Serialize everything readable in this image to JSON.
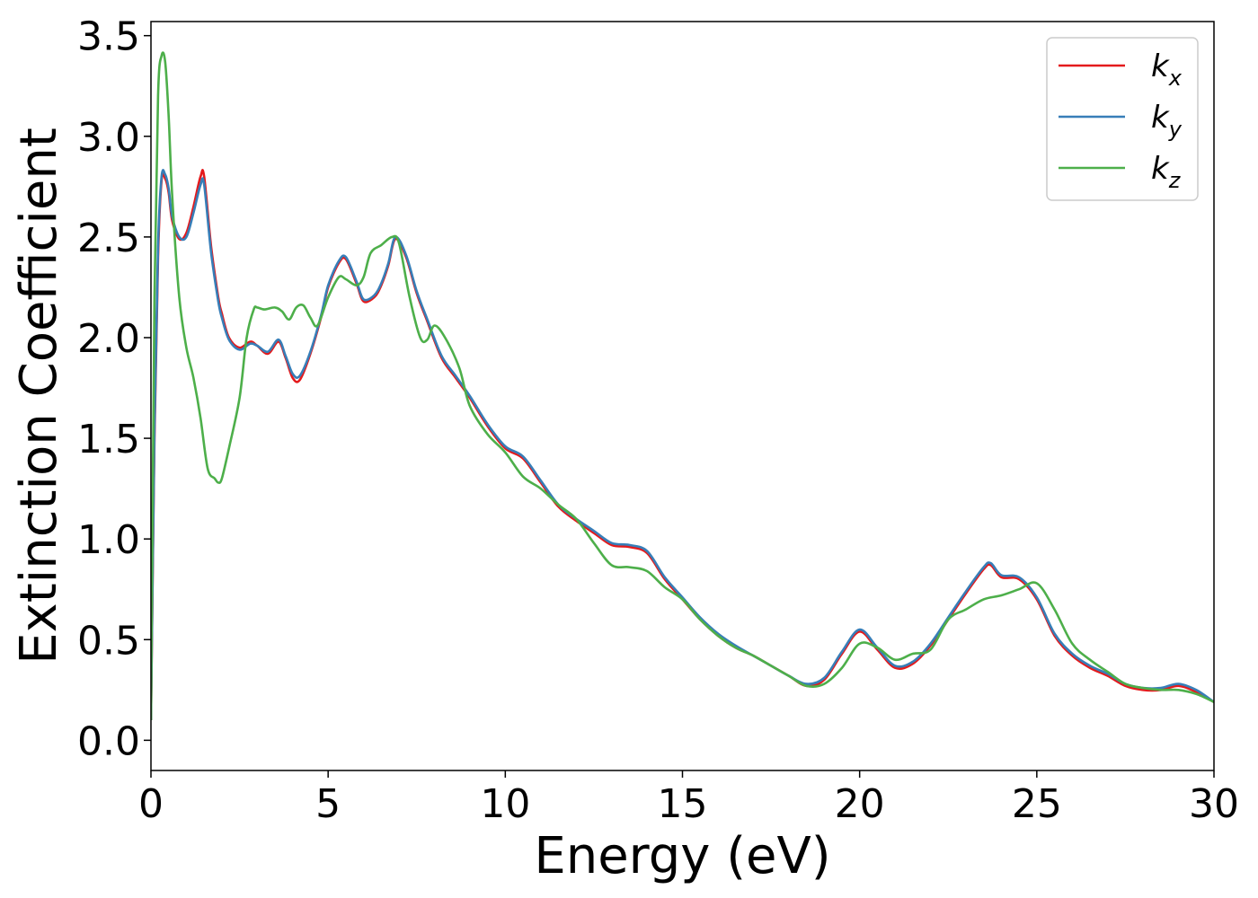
{
  "chart_data": {
    "type": "line",
    "xlabel": "Energy (eV)",
    "ylabel": "Extinction Coefficient",
    "xlim": [
      0,
      30
    ],
    "ylim": [
      -0.15,
      3.57
    ],
    "xticks": [
      0,
      5,
      10,
      15,
      20,
      25,
      30
    ],
    "xtick_labels": [
      "0",
      "5",
      "10",
      "15",
      "20",
      "25",
      "30"
    ],
    "yticks": [
      0.0,
      0.5,
      1.0,
      1.5,
      2.0,
      2.5,
      3.0,
      3.5
    ],
    "ytick_labels": [
      "0.0",
      "0.5",
      "1.0",
      "1.5",
      "2.0",
      "2.5",
      "3.0",
      "3.5"
    ],
    "grid": false,
    "legend_position": "top-right",
    "series": [
      {
        "name": "kx",
        "name_main": "k",
        "name_sub": "x",
        "color": "#e41a1c",
        "x": [
          0,
          0.1,
          0.2,
          0.3,
          0.4,
          0.5,
          0.6,
          0.8,
          1.0,
          1.2,
          1.4,
          1.5,
          1.7,
          1.9,
          2.0,
          2.2,
          2.5,
          2.8,
          3.0,
          3.3,
          3.6,
          3.8,
          4.0,
          4.2,
          4.5,
          4.8,
          5.0,
          5.3,
          5.5,
          5.8,
          6.0,
          6.3,
          6.5,
          6.7,
          6.9,
          7.2,
          7.5,
          7.8,
          8.2,
          8.6,
          9.0,
          9.5,
          10.0,
          10.5,
          11.0,
          11.5,
          12.0,
          12.5,
          13.0,
          13.5,
          14.0,
          14.5,
          15.0,
          15.5,
          16.0,
          16.5,
          17.0,
          17.5,
          18.0,
          18.5,
          19.0,
          19.5,
          20.0,
          20.5,
          21.0,
          21.5,
          22.0,
          22.5,
          23.0,
          23.5,
          23.7,
          24.0,
          24.5,
          25.0,
          25.5,
          26.0,
          26.5,
          27.0,
          27.5,
          28.0,
          28.5,
          29.0,
          29.5,
          30.0
        ],
        "values": [
          0.1,
          1.5,
          2.4,
          2.78,
          2.79,
          2.72,
          2.58,
          2.49,
          2.52,
          2.65,
          2.8,
          2.8,
          2.45,
          2.2,
          2.12,
          2.0,
          1.95,
          1.98,
          1.96,
          1.92,
          1.98,
          1.9,
          1.8,
          1.79,
          1.92,
          2.1,
          2.25,
          2.37,
          2.39,
          2.27,
          2.18,
          2.2,
          2.26,
          2.36,
          2.49,
          2.4,
          2.22,
          2.08,
          1.9,
          1.8,
          1.7,
          1.56,
          1.45,
          1.4,
          1.28,
          1.16,
          1.09,
          1.03,
          0.97,
          0.96,
          0.93,
          0.8,
          0.7,
          0.6,
          0.52,
          0.46,
          0.42,
          0.37,
          0.32,
          0.27,
          0.3,
          0.43,
          0.54,
          0.45,
          0.36,
          0.38,
          0.47,
          0.6,
          0.73,
          0.85,
          0.87,
          0.81,
          0.8,
          0.7,
          0.52,
          0.42,
          0.36,
          0.32,
          0.27,
          0.25,
          0.25,
          0.27,
          0.24,
          0.19
        ]
      },
      {
        "name": "ky",
        "name_main": "k",
        "name_sub": "y",
        "color": "#377eb8",
        "x": [
          0,
          0.1,
          0.2,
          0.3,
          0.4,
          0.5,
          0.6,
          0.8,
          1.0,
          1.2,
          1.4,
          1.5,
          1.7,
          1.9,
          2.0,
          2.2,
          2.5,
          2.8,
          3.0,
          3.3,
          3.6,
          3.8,
          4.0,
          4.2,
          4.5,
          4.8,
          5.0,
          5.3,
          5.5,
          5.8,
          6.0,
          6.3,
          6.5,
          6.7,
          6.9,
          7.2,
          7.5,
          7.8,
          8.2,
          8.6,
          9.0,
          9.5,
          10.0,
          10.5,
          11.0,
          11.5,
          12.0,
          12.5,
          13.0,
          13.5,
          14.0,
          14.5,
          15.0,
          15.5,
          16.0,
          16.5,
          17.0,
          17.5,
          18.0,
          18.5,
          19.0,
          19.5,
          20.0,
          20.5,
          21.0,
          21.5,
          22.0,
          22.5,
          23.0,
          23.5,
          23.7,
          24.0,
          24.5,
          25.0,
          25.5,
          26.0,
          26.5,
          27.0,
          27.5,
          28.0,
          28.5,
          29.0,
          29.5,
          30.0
        ],
        "values": [
          0.1,
          1.55,
          2.45,
          2.8,
          2.81,
          2.74,
          2.6,
          2.5,
          2.5,
          2.62,
          2.76,
          2.76,
          2.42,
          2.18,
          2.1,
          1.99,
          1.94,
          1.97,
          1.96,
          1.93,
          1.99,
          1.91,
          1.82,
          1.81,
          1.93,
          2.11,
          2.26,
          2.38,
          2.4,
          2.28,
          2.19,
          2.21,
          2.27,
          2.37,
          2.5,
          2.41,
          2.23,
          2.09,
          1.91,
          1.81,
          1.71,
          1.57,
          1.46,
          1.41,
          1.29,
          1.17,
          1.1,
          1.04,
          0.98,
          0.97,
          0.94,
          0.81,
          0.71,
          0.61,
          0.53,
          0.47,
          0.42,
          0.37,
          0.32,
          0.28,
          0.31,
          0.44,
          0.55,
          0.46,
          0.37,
          0.39,
          0.48,
          0.61,
          0.74,
          0.86,
          0.88,
          0.82,
          0.81,
          0.71,
          0.53,
          0.43,
          0.37,
          0.33,
          0.28,
          0.26,
          0.26,
          0.28,
          0.25,
          0.19
        ]
      },
      {
        "name": "kz",
        "name_main": "k",
        "name_sub": "z",
        "color": "#4daf4a",
        "x": [
          0,
          0.1,
          0.2,
          0.3,
          0.4,
          0.5,
          0.6,
          0.8,
          1.0,
          1.2,
          1.4,
          1.6,
          1.8,
          1.9,
          2.0,
          2.2,
          2.5,
          2.7,
          2.9,
          3.0,
          3.2,
          3.5,
          3.7,
          3.9,
          4.1,
          4.3,
          4.5,
          4.7,
          5.0,
          5.3,
          5.5,
          5.8,
          6.0,
          6.2,
          6.5,
          6.8,
          7.0,
          7.3,
          7.6,
          7.8,
          8.0,
          8.3,
          8.7,
          9.0,
          9.5,
          10.0,
          10.5,
          11.0,
          11.5,
          12.0,
          12.5,
          13.0,
          13.5,
          14.0,
          14.5,
          15.0,
          15.5,
          16.0,
          16.5,
          17.0,
          17.5,
          18.0,
          18.5,
          19.0,
          19.5,
          20.0,
          20.5,
          21.0,
          21.5,
          22.0,
          22.5,
          23.0,
          23.5,
          24.0,
          24.5,
          25.0,
          25.5,
          26.0,
          26.5,
          27.0,
          27.5,
          28.0,
          28.5,
          29.0,
          29.5,
          30.0
        ],
        "values": [
          0.1,
          2.2,
          3.2,
          3.4,
          3.37,
          3.1,
          2.7,
          2.2,
          1.95,
          1.8,
          1.6,
          1.35,
          1.3,
          1.28,
          1.3,
          1.45,
          1.7,
          2.0,
          2.14,
          2.15,
          2.14,
          2.15,
          2.13,
          2.09,
          2.15,
          2.16,
          2.1,
          2.06,
          2.2,
          2.3,
          2.29,
          2.26,
          2.3,
          2.42,
          2.46,
          2.5,
          2.47,
          2.2,
          2.0,
          1.99,
          2.06,
          2.0,
          1.85,
          1.66,
          1.52,
          1.43,
          1.31,
          1.25,
          1.17,
          1.1,
          0.98,
          0.87,
          0.86,
          0.84,
          0.76,
          0.7,
          0.6,
          0.52,
          0.46,
          0.42,
          0.37,
          0.32,
          0.27,
          0.28,
          0.36,
          0.48,
          0.46,
          0.4,
          0.43,
          0.45,
          0.6,
          0.65,
          0.7,
          0.72,
          0.75,
          0.78,
          0.65,
          0.48,
          0.4,
          0.34,
          0.28,
          0.26,
          0.25,
          0.25,
          0.23,
          0.19
        ]
      }
    ]
  }
}
